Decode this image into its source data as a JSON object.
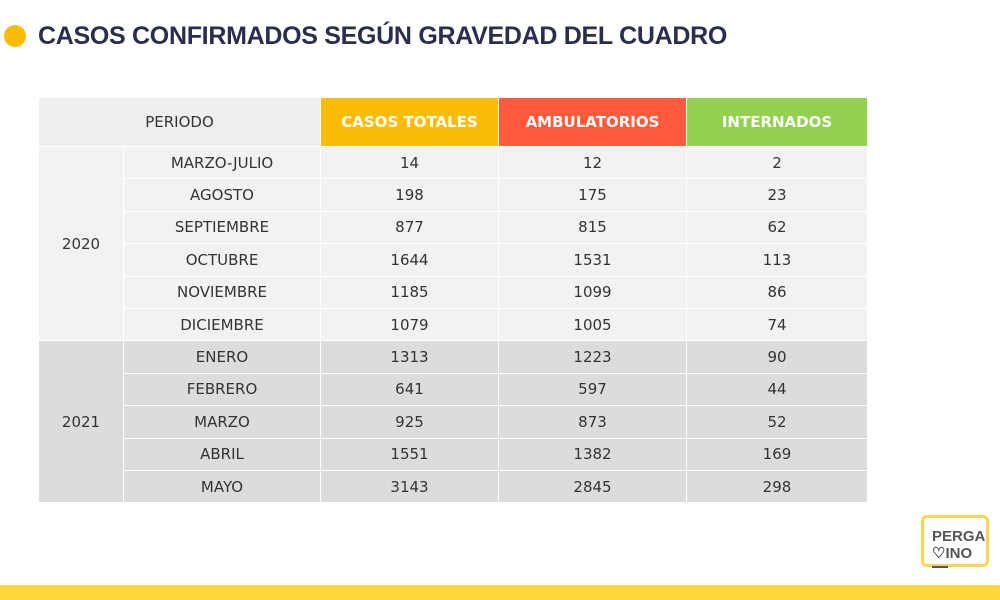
{
  "title": "CASOS CONFIRMADOS SEGÚN GRAVEDAD DEL CUADRO",
  "colors": {
    "casos_totales": "#fbbc05",
    "ambulatorios": "#ff5a3c",
    "internados": "#92d050",
    "accent": "#fdd83b"
  },
  "headers": [
    "PERIODO",
    "CASOS TOTALES",
    "AMBULATORIOS",
    "INTERNADOS"
  ],
  "groups": [
    {
      "year": "2020",
      "rows": [
        [
          "MARZO-JULIO",
          "14",
          "12",
          "2"
        ],
        [
          "AGOSTO",
          "198",
          "175",
          "23"
        ],
        [
          "SEPTIEMBRE",
          "877",
          "815",
          "62"
        ],
        [
          "OCTUBRE",
          "1644",
          "1531",
          "113"
        ],
        [
          "NOVIEMBRE",
          "1185",
          "1099",
          "86"
        ],
        [
          "DICIEMBRE",
          "1079",
          "1005",
          "74"
        ]
      ]
    },
    {
      "year": "2021",
      "rows": [
        [
          "ENERO",
          "1313",
          "1223",
          "90"
        ],
        [
          "FEBRERO",
          "641",
          "597",
          "44"
        ],
        [
          "MARZO",
          "925",
          "873",
          "52"
        ],
        [
          "ABRIL",
          "1551",
          "1382",
          "169"
        ],
        [
          "MAYO",
          "3143",
          "2845",
          "298"
        ]
      ]
    }
  ],
  "logo": {
    "line1": "PERGA",
    "line2": "♡INO"
  }
}
